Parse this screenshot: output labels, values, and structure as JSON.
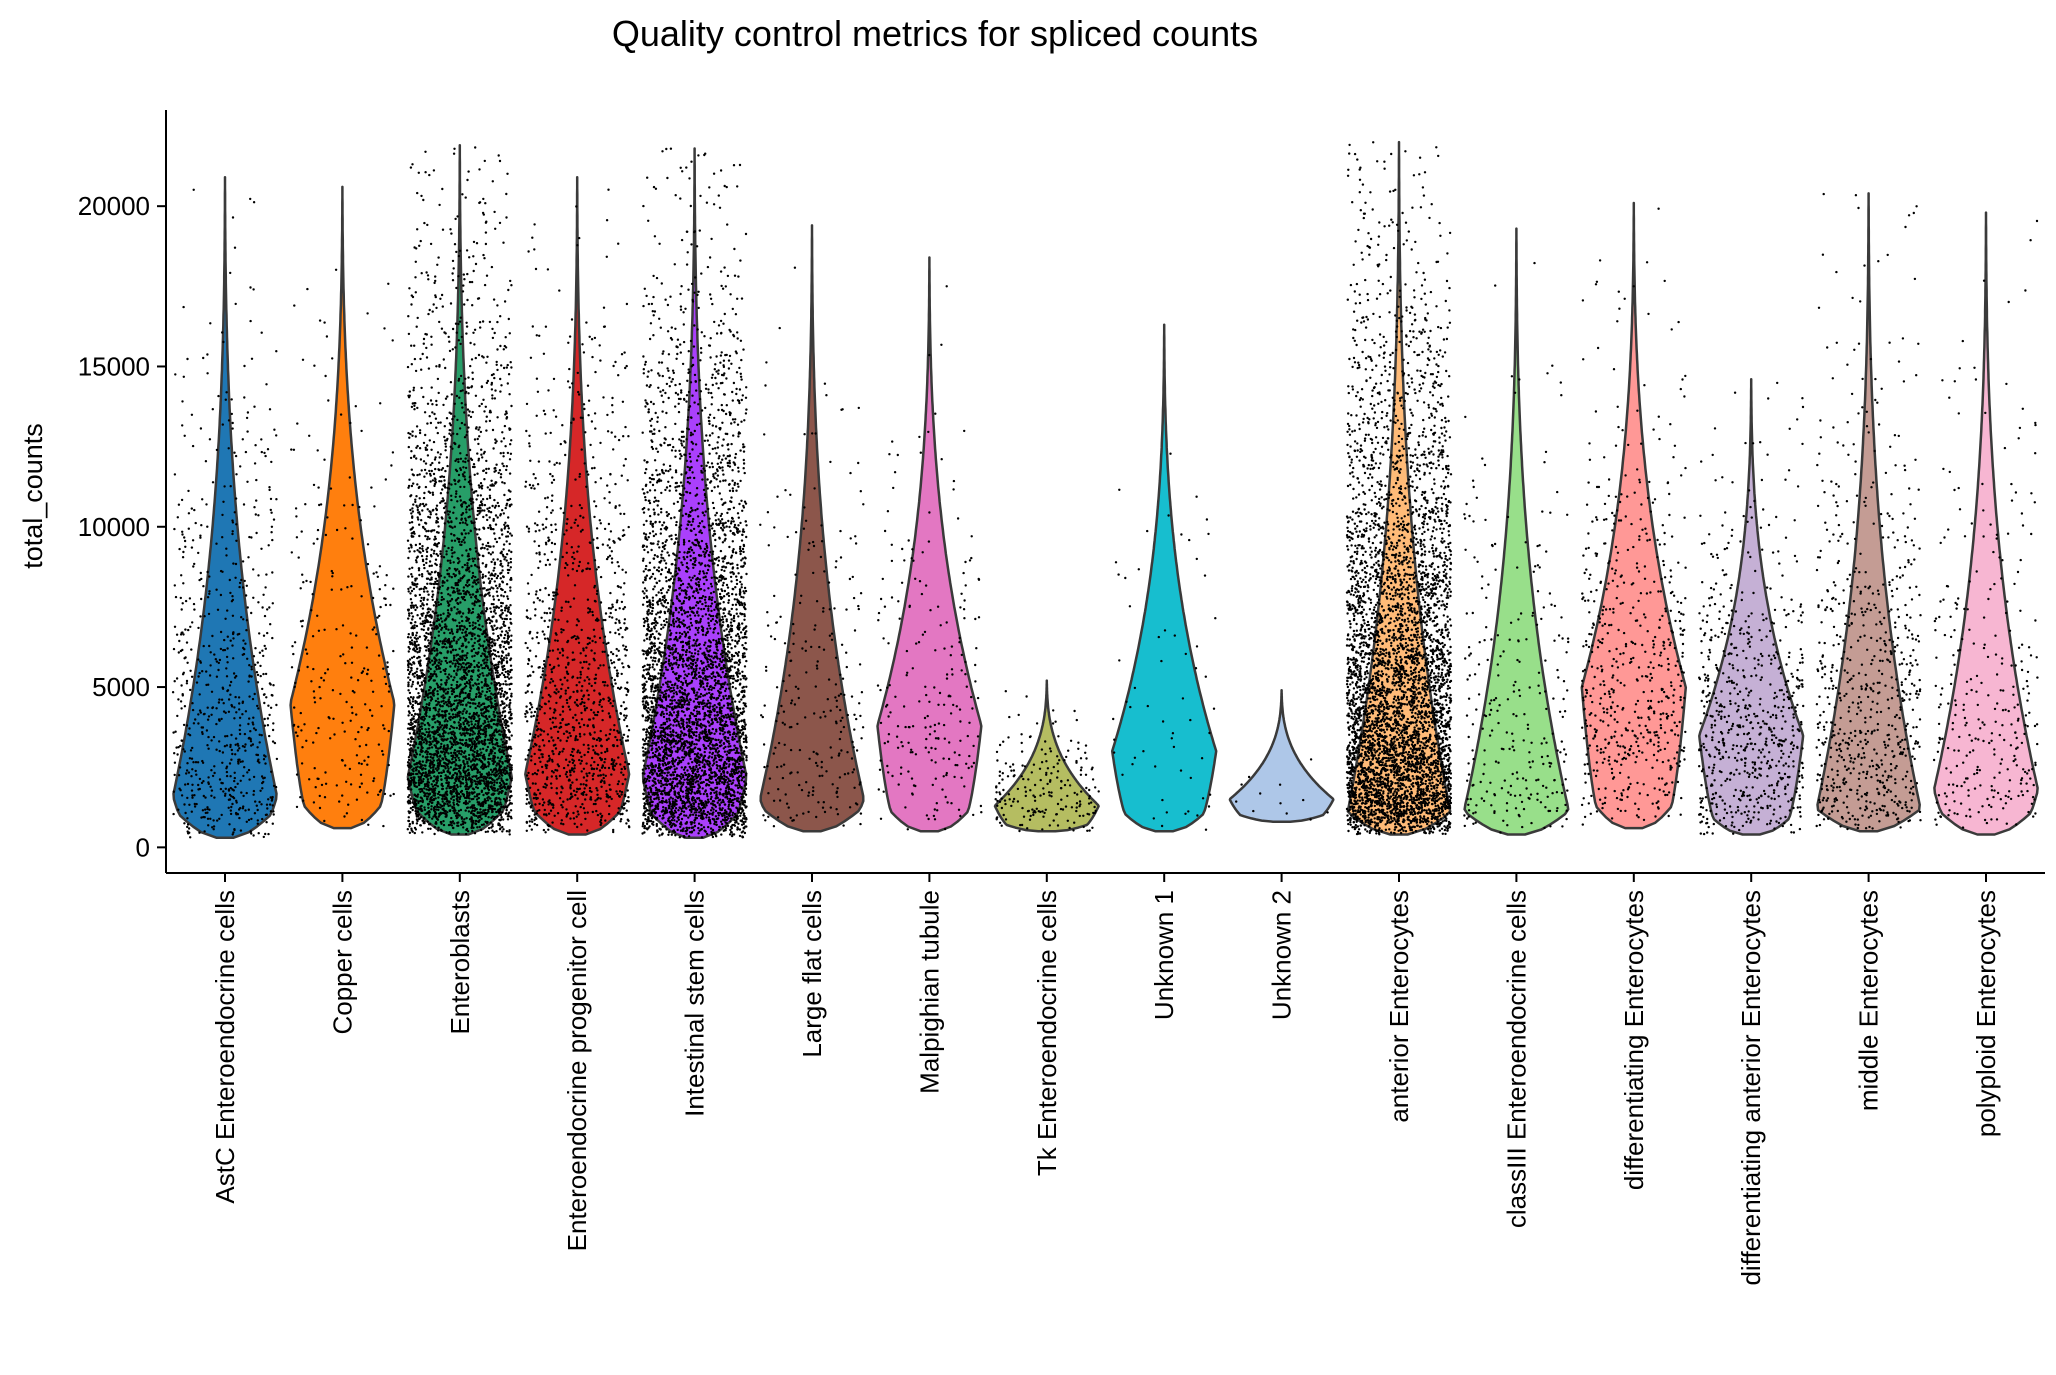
{
  "chart_data": {
    "type": "violin",
    "title": "Quality control metrics for spliced counts",
    "xlabel": "",
    "ylabel": "total_counts",
    "ylim": [
      -800,
      23000
    ],
    "yticks": [
      0,
      5000,
      10000,
      15000,
      20000
    ],
    "grid": false,
    "legend": "none",
    "jitter_points": true,
    "categories": [
      "AstC Enteroendocrine cells",
      "Copper cells",
      "Enteroblasts",
      "Enteroendocrine progenitor cell",
      "Intestinal stem cells",
      "Large flat cells",
      "Malpighian tubule",
      "Tk Enteroendocrine cells",
      "Unknown 1",
      "Unknown 2",
      "anterior Enterocytes",
      "classIII Enteroendocrine cells",
      "differentiating Enterocytes",
      "differentiating anterior Enterocytes",
      "middle Enterocytes",
      "polyploid Enterocytes"
    ],
    "series": [
      {
        "color": "#1f77b4",
        "min": 300,
        "max": 20900,
        "mode": 1600,
        "n_points": 700
      },
      {
        "color": "#ff7f0e",
        "min": 600,
        "max": 20600,
        "mode": 4500,
        "n_points": 250
      },
      {
        "color": "#279e68",
        "min": 400,
        "max": 21900,
        "mode": 2200,
        "n_points": 4500
      },
      {
        "color": "#d62728",
        "min": 400,
        "max": 20900,
        "mode": 2300,
        "n_points": 1200
      },
      {
        "color": "#aa40fc",
        "min": 300,
        "max": 21800,
        "mode": 2200,
        "n_points": 4500
      },
      {
        "color": "#8c564b",
        "min": 500,
        "max": 19400,
        "mode": 1500,
        "n_points": 250
      },
      {
        "color": "#e377c2",
        "min": 500,
        "max": 18400,
        "mode": 3800,
        "n_points": 220
      },
      {
        "color": "#b5bd61",
        "min": 500,
        "max": 5200,
        "mode": 1300,
        "n_points": 200
      },
      {
        "color": "#17becf",
        "min": 500,
        "max": 16300,
        "mode": 3000,
        "n_points": 60
      },
      {
        "color": "#aec7e8",
        "min": 800,
        "max": 4900,
        "mode": 1500,
        "n_points": 12
      },
      {
        "color": "#ffbb78",
        "min": 400,
        "max": 22000,
        "mode": 1000,
        "n_points": 5000
      },
      {
        "color": "#98df8a",
        "min": 400,
        "max": 19300,
        "mode": 1200,
        "n_points": 260
      },
      {
        "color": "#ff9896",
        "min": 600,
        "max": 20100,
        "mode": 5000,
        "n_points": 600
      },
      {
        "color": "#c5b0d5",
        "min": 400,
        "max": 14600,
        "mode": 3500,
        "n_points": 700
      },
      {
        "color": "#c49c94",
        "min": 500,
        "max": 20400,
        "mode": 1200,
        "n_points": 700
      },
      {
        "color": "#f7b6d2",
        "min": 400,
        "max": 19800,
        "mode": 1800,
        "n_points": 300
      }
    ]
  }
}
